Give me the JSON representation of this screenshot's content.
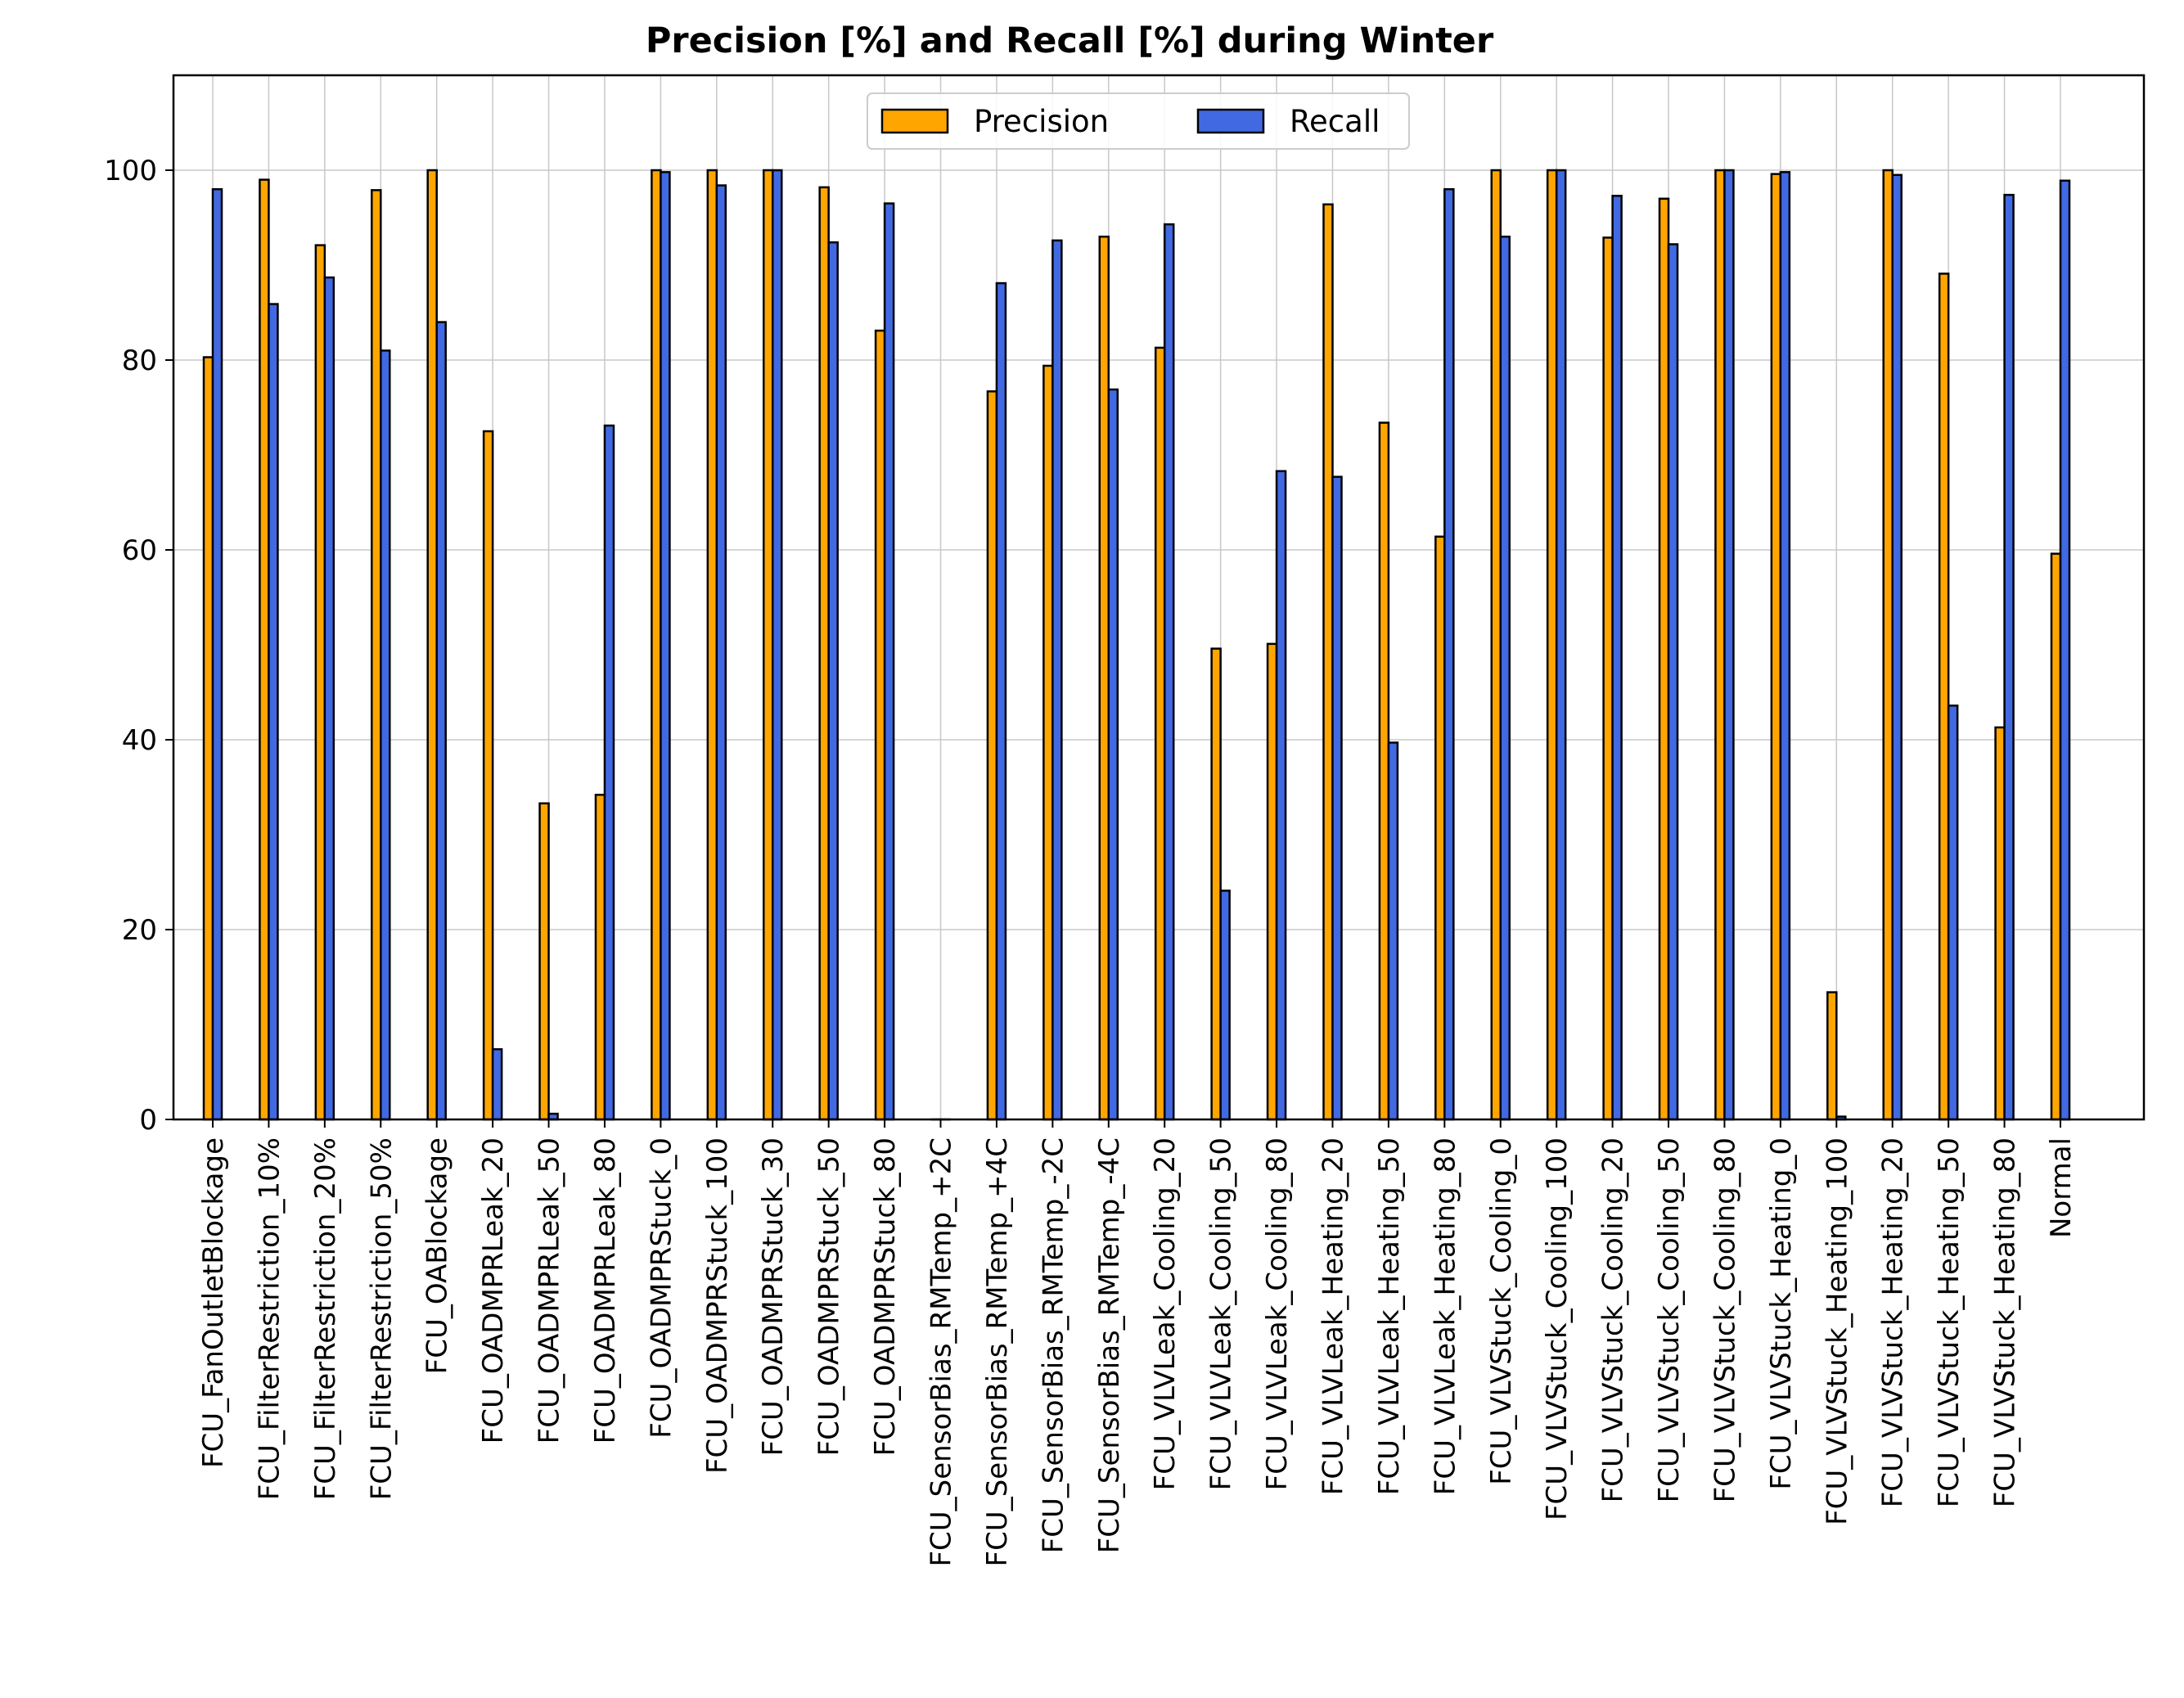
{
  "chart_data": {
    "type": "bar",
    "title": "Precision [%] and Recall [%] during Winter",
    "xlabel": "",
    "ylabel": "",
    "ylim": [
      0,
      110
    ],
    "yticks": [
      0,
      20,
      40,
      60,
      80,
      100
    ],
    "grid": true,
    "legend_position": "top-center",
    "categories": [
      "FCU_FanOutletBlockage",
      "FCU_FilterRestriction_10%",
      "FCU_FilterRestriction_20%",
      "FCU_FilterRestriction_50%",
      "FCU_OABlockage",
      "FCU_OADMPRLeak_20",
      "FCU_OADMPRLeak_50",
      "FCU_OADMPRLeak_80",
      "FCU_OADMPRStuck_0",
      "FCU_OADMPRStuck_100",
      "FCU_OADMPRStuck_30",
      "FCU_OADMPRStuck_50",
      "FCU_OADMPRStuck_80",
      "FCU_SensorBias_RMTemp_+2C",
      "FCU_SensorBias_RMTemp_+4C",
      "FCU_SensorBias_RMTemp_-2C",
      "FCU_SensorBias_RMTemp_-4C",
      "FCU_VLVLeak_Cooling_20",
      "FCU_VLVLeak_Cooling_50",
      "FCU_VLVLeak_Cooling_80",
      "FCU_VLVLeak_Heating_20",
      "FCU_VLVLeak_Heating_50",
      "FCU_VLVLeak_Heating_80",
      "FCU_VLVStuck_Cooling_0",
      "FCU_VLVStuck_Cooling_100",
      "FCU_VLVStuck_Cooling_20",
      "FCU_VLVStuck_Cooling_50",
      "FCU_VLVStuck_Cooling_80",
      "FCU_VLVStuck_Heating_0",
      "FCU_VLVStuck_Heating_100",
      "FCU_VLVStuck_Heating_20",
      "FCU_VLVStuck_Heating_50",
      "FCU_VLVStuck_Heating_80",
      "Normal"
    ],
    "series": [
      {
        "name": "Precision",
        "color": "#FFA500",
        "values": [
          80.3,
          99.0,
          92.1,
          97.9,
          100.0,
          72.5,
          33.3,
          34.2,
          100.0,
          100.0,
          100.0,
          98.2,
          83.1,
          0.0,
          76.7,
          79.4,
          93.0,
          81.3,
          49.6,
          50.1,
          96.4,
          73.4,
          61.4,
          100.0,
          100.0,
          92.9,
          97.0,
          100.0,
          99.6,
          13.4,
          100.0,
          89.1,
          41.3,
          59.6
        ]
      },
      {
        "name": "Recall",
        "color": "#4169E1",
        "values": [
          98.0,
          85.9,
          88.7,
          81.0,
          84.0,
          7.4,
          0.6,
          73.1,
          99.8,
          98.4,
          100.0,
          92.4,
          96.5,
          0.0,
          88.1,
          92.6,
          76.9,
          94.3,
          24.1,
          68.3,
          67.7,
          39.7,
          98.0,
          93.0,
          100.0,
          97.3,
          92.2,
          100.0,
          99.8,
          0.3,
          99.5,
          43.6,
          97.4,
          98.9
        ]
      }
    ]
  }
}
